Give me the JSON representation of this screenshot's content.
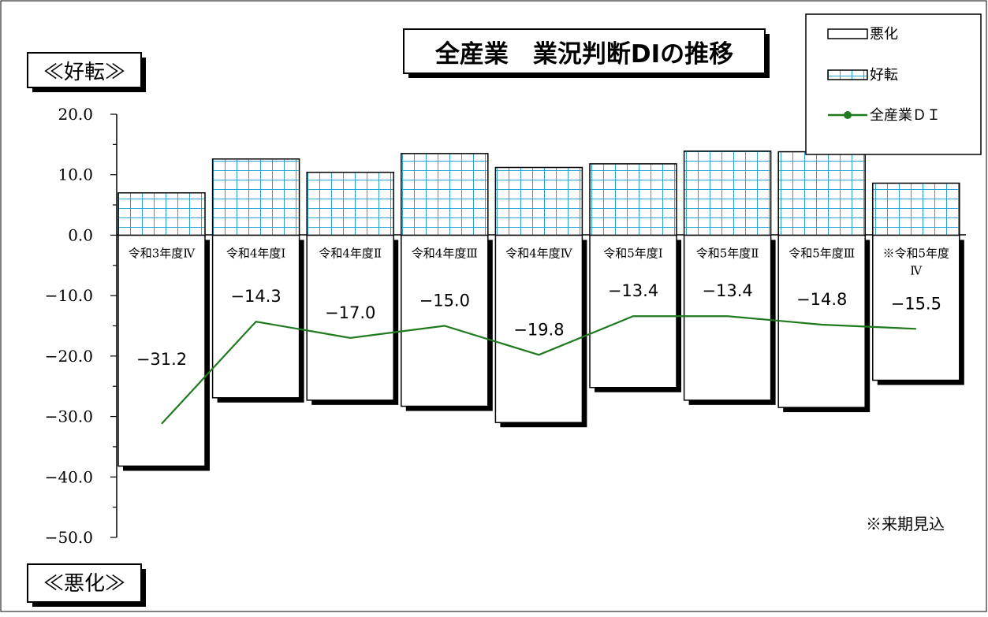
{
  "chart_data": {
    "type": "bar",
    "title": "全産業　業況判断DIの推移",
    "upper_label": "≪好転≫",
    "lower_label": "≪悪化≫",
    "footnote": "※来期見込",
    "ylim": [
      -50,
      20
    ],
    "y_ticks": [
      20,
      10,
      0,
      -10,
      -20,
      -30,
      -40,
      -50
    ],
    "y_tick_labels": [
      "20.0",
      "10.0",
      "0.0",
      "−10.0",
      "−20.0",
      "−30.0",
      "−40.0",
      "−50.0"
    ],
    "categories": [
      "令和3年度Ⅳ",
      "令和4年度Ⅰ",
      "令和4年度Ⅱ",
      "令和4年度Ⅲ",
      "令和4年度Ⅳ",
      "令和5年度Ⅰ",
      "令和5年度Ⅱ",
      "令和5年度Ⅲ",
      "※令和5年度\nⅣ"
    ],
    "series": [
      {
        "name": "悪化",
        "values": [
          -38.2,
          -26.9,
          -27.3,
          -28.3,
          -31.0,
          -25.2,
          -27.3,
          -28.5,
          -24.0
        ]
      },
      {
        "name": "好転",
        "values": [
          7.0,
          12.6,
          10.4,
          13.5,
          11.2,
          11.8,
          13.9,
          13.8,
          8.6
        ]
      },
      {
        "name": "全産業ＤＩ",
        "values": [
          -31.2,
          -14.3,
          -17.0,
          -15.0,
          -19.8,
          -13.4,
          -13.4,
          -14.8,
          -15.5
        ]
      }
    ],
    "di_labels": [
      "−31.2",
      "−14.3",
      "−17.0",
      "−15.0",
      "−19.8",
      "−13.4",
      "−13.4",
      "−14.8",
      "−15.5"
    ],
    "colors": {
      "grid_fill": "#ffffff",
      "grid_line": "#29a3d6",
      "bar_outline": "#000000",
      "shadow": "#000000",
      "di_line": "#1f7a1f"
    }
  }
}
